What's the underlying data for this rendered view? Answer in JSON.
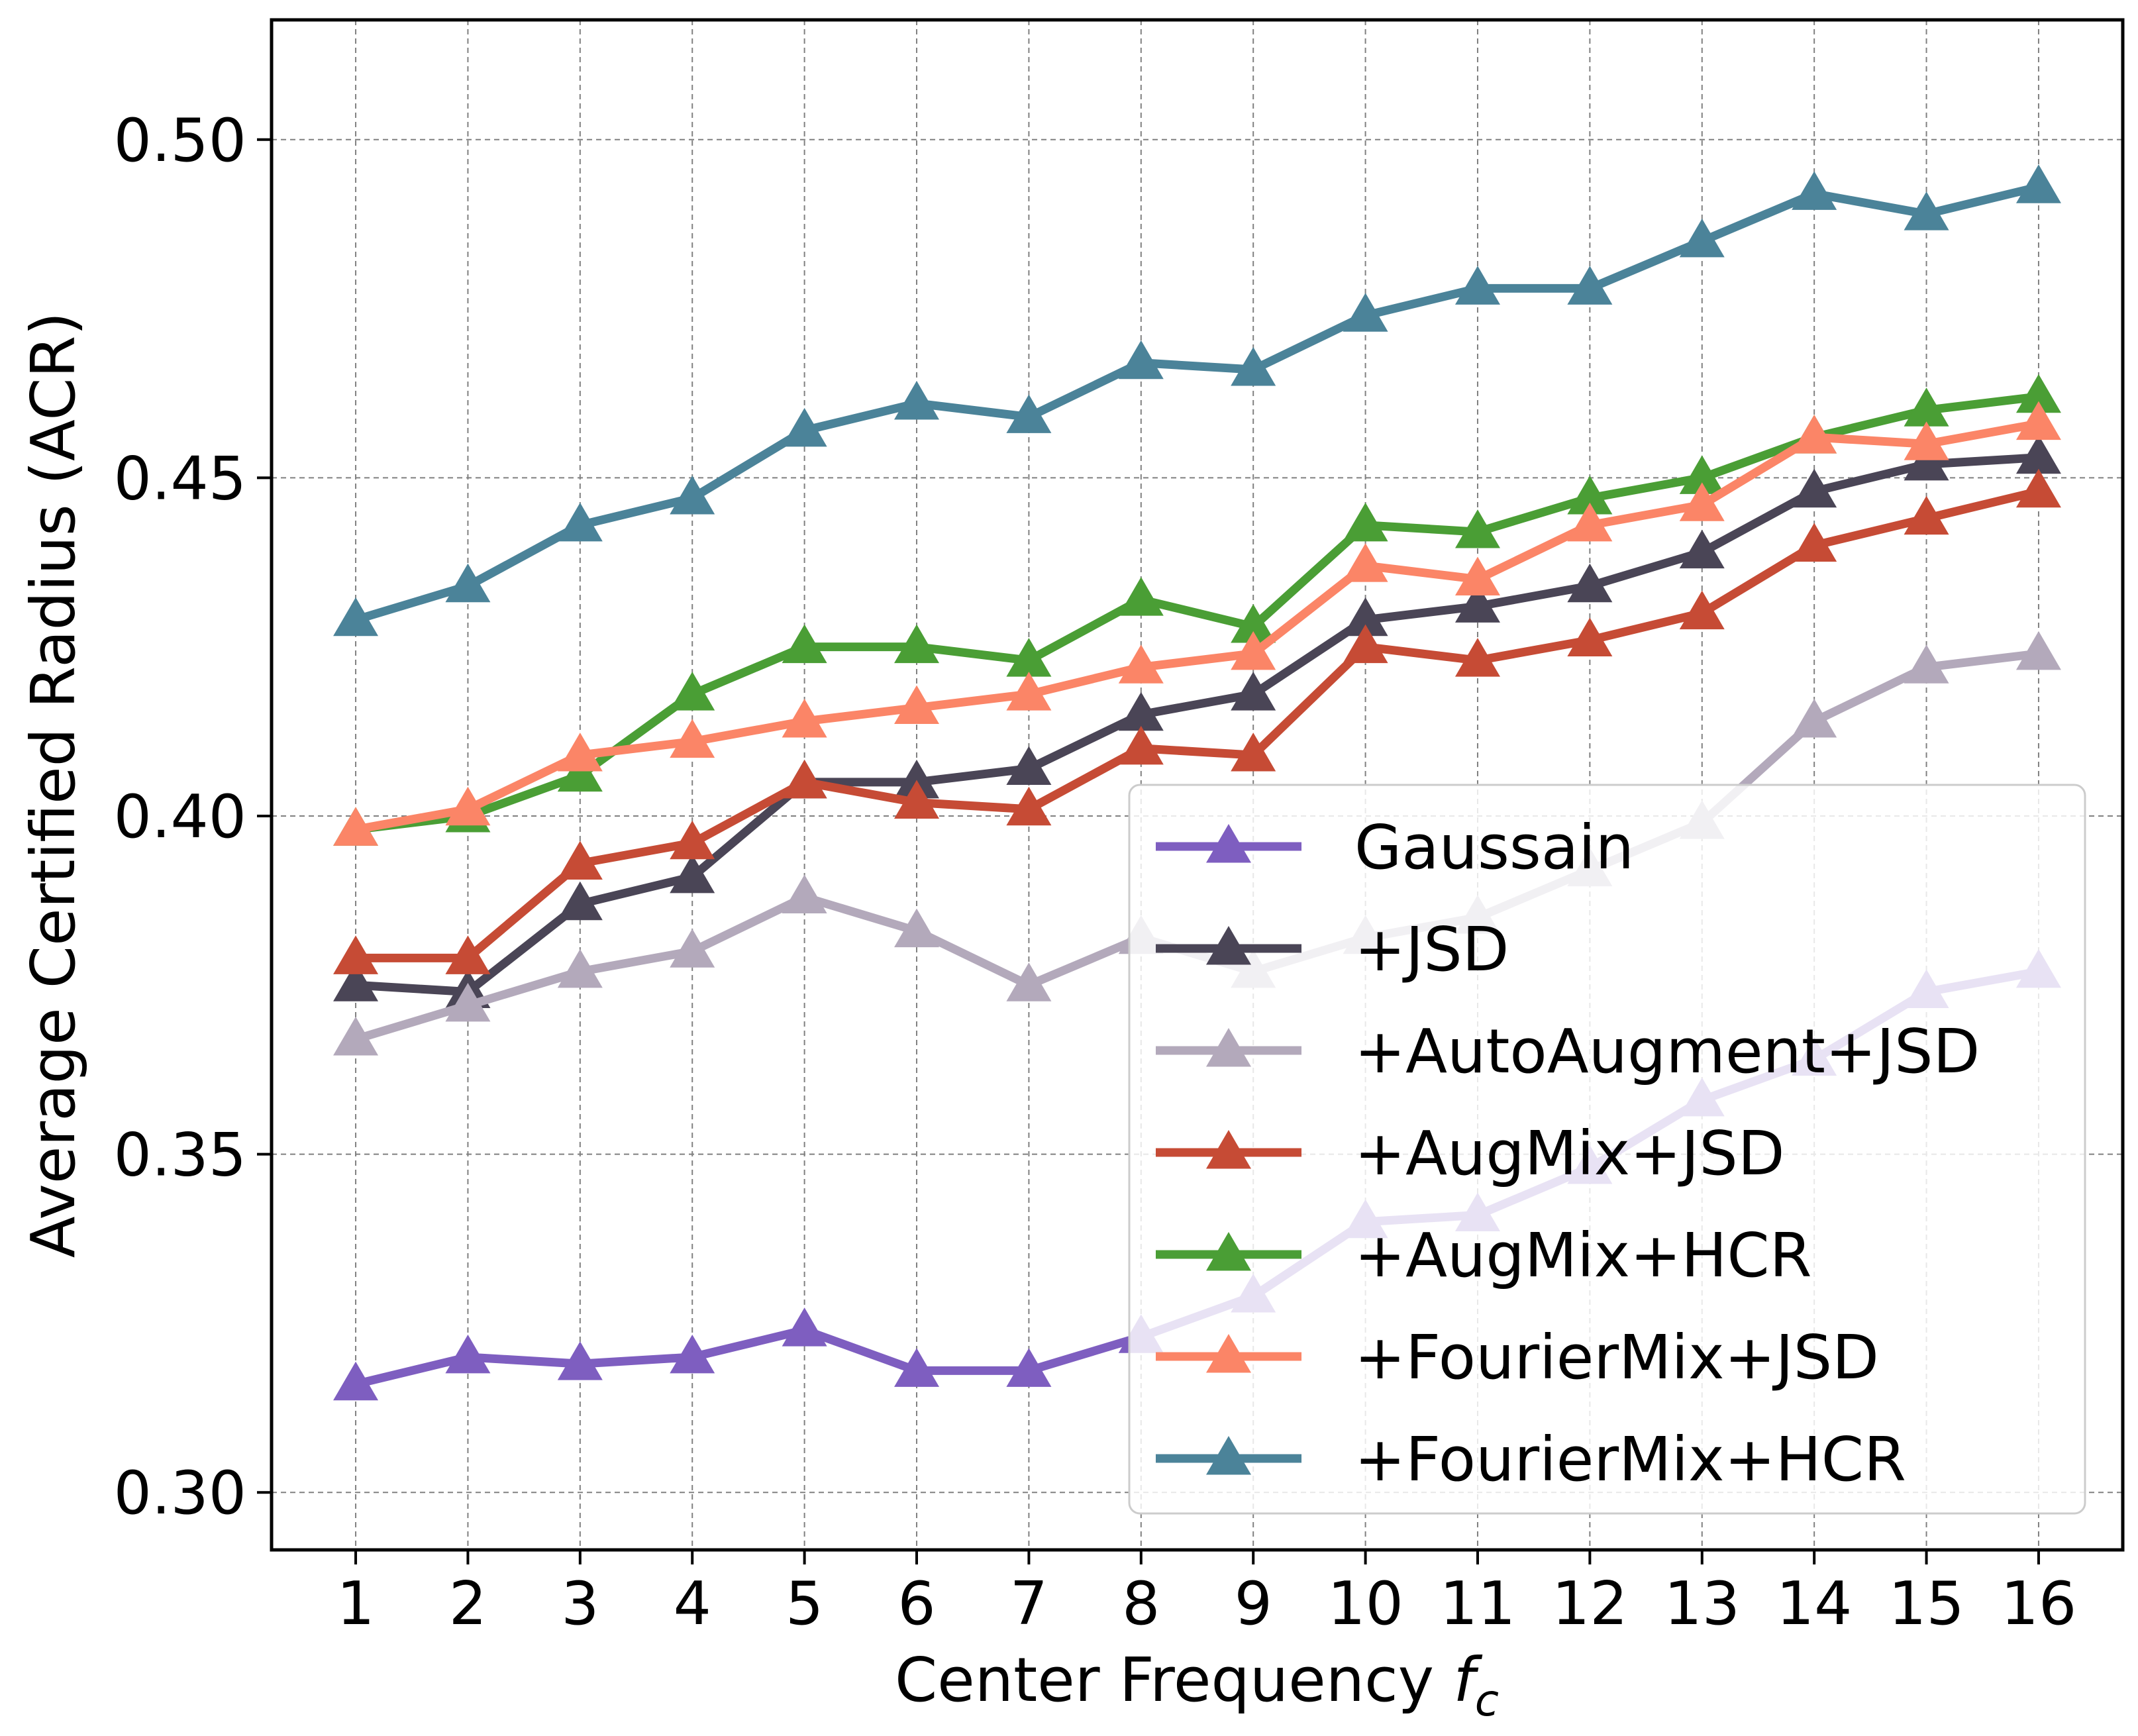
{
  "chart_data": {
    "type": "line",
    "title": "",
    "xlabel": "Center Frequency ",
    "xlabel_math": "f",
    "xlabel_sub": "c",
    "ylabel": "Average Certified Radius (ACR)",
    "x": [
      1,
      2,
      3,
      4,
      5,
      6,
      7,
      8,
      9,
      10,
      11,
      12,
      13,
      14,
      15,
      16
    ],
    "x_tick_labels": [
      "1",
      "2",
      "3",
      "4",
      "5",
      "6",
      "7",
      "8",
      "9",
      "10",
      "11",
      "12",
      "13",
      "14",
      "15",
      "16"
    ],
    "y_ticks": [
      0.3,
      0.35,
      0.4,
      0.45,
      0.5
    ],
    "y_tick_labels": [
      "0.30",
      "0.35",
      "0.40",
      "0.45",
      "0.50"
    ],
    "xlim": [
      0.25,
      16.75
    ],
    "ylim": [
      0.2915,
      0.5177
    ],
    "grid": true,
    "legend_position": "lower-right",
    "marker": "triangle-up",
    "series": [
      {
        "name": "Gaussain",
        "color": "#7e5ec0",
        "values": [
          0.316,
          0.32,
          0.319,
          0.32,
          0.324,
          0.318,
          0.318,
          0.323,
          0.329,
          0.34,
          0.341,
          0.348,
          0.358,
          0.364,
          0.374,
          0.377
        ]
      },
      {
        "name": "+JSD",
        "color": "#4a4556",
        "values": [
          0.375,
          0.374,
          0.387,
          0.391,
          0.405,
          0.405,
          0.407,
          0.415,
          0.418,
          0.429,
          0.431,
          0.434,
          0.439,
          0.448,
          0.452,
          0.453
        ]
      },
      {
        "name": "+AutoAugment+JSD",
        "color": "#b3a9bb",
        "values": [
          0.367,
          0.372,
          0.377,
          0.38,
          0.388,
          0.383,
          0.375,
          0.382,
          0.377,
          0.382,
          0.385,
          0.392,
          0.399,
          0.414,
          0.422,
          0.424
        ]
      },
      {
        "name": "+AugMix+JSD",
        "color": "#c64b35",
        "values": [
          0.379,
          0.379,
          0.393,
          0.396,
          0.405,
          0.402,
          0.401,
          0.41,
          0.409,
          0.425,
          0.423,
          0.426,
          0.43,
          0.44,
          0.444,
          0.448
        ]
      },
      {
        "name": "+AugMix+HCR",
        "color": "#4a9e35",
        "values": [
          0.398,
          0.4,
          0.406,
          0.418,
          0.425,
          0.425,
          0.423,
          0.432,
          0.428,
          0.443,
          0.442,
          0.447,
          0.45,
          0.456,
          0.46,
          0.462
        ]
      },
      {
        "name": "+FourierMix+JSD",
        "color": "#fb8567",
        "values": [
          0.398,
          0.401,
          0.409,
          0.411,
          0.414,
          0.416,
          0.418,
          0.422,
          0.424,
          0.437,
          0.435,
          0.443,
          0.446,
          0.456,
          0.455,
          0.458
        ]
      },
      {
        "name": "+FourierMix+HCR",
        "color": "#4b8399",
        "values": [
          0.429,
          0.434,
          0.443,
          0.447,
          0.457,
          0.461,
          0.459,
          0.467,
          0.466,
          0.474,
          0.478,
          0.478,
          0.485,
          0.492,
          0.489,
          0.493
        ]
      }
    ]
  }
}
